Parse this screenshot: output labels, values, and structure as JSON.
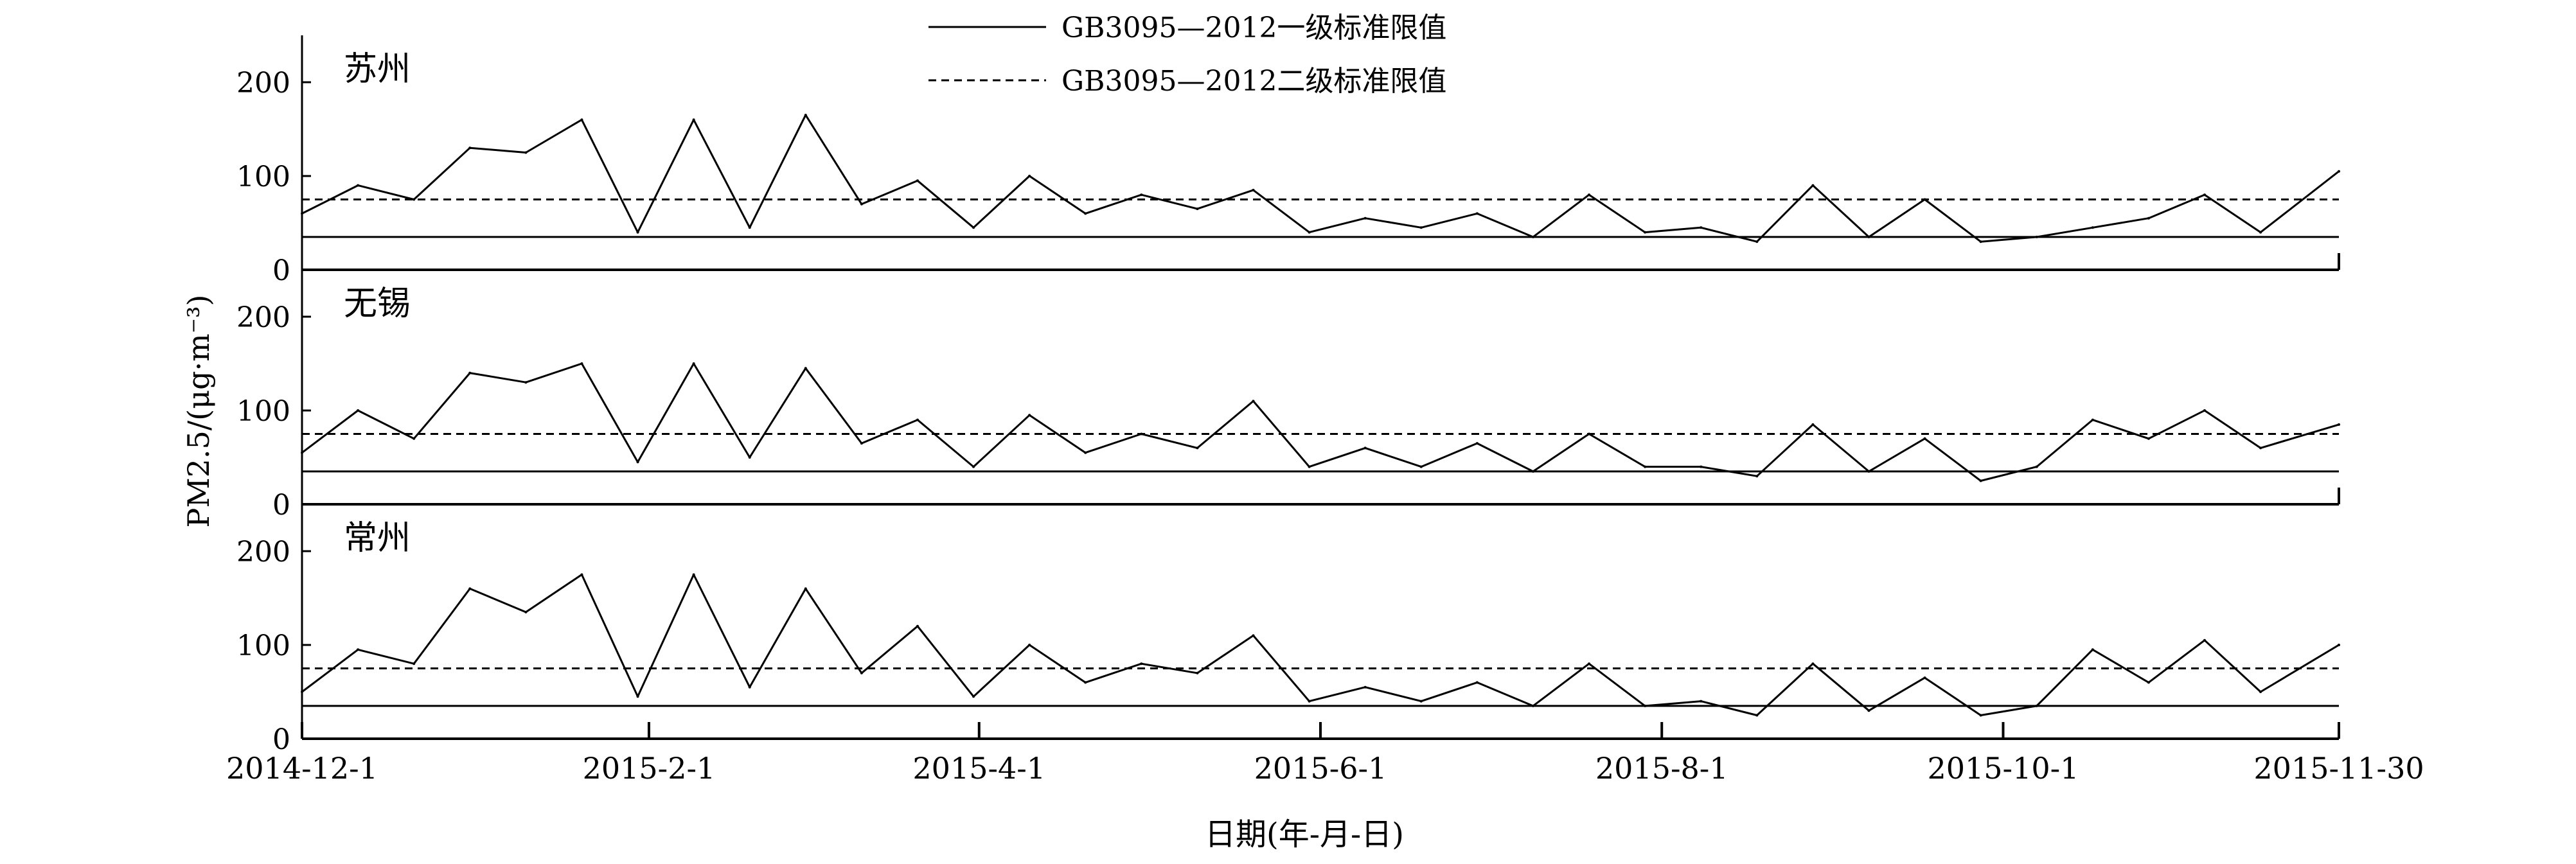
{
  "chart_data": {
    "type": "line",
    "xlabel": "日期(年-月-日)",
    "ylabel": "PM2.5/(μg·m⁻³)",
    "ylim": [
      0,
      250
    ],
    "yticks": [
      0,
      100,
      200
    ],
    "legend": {
      "placement": "top-center",
      "entries": [
        {
          "label": "GB3095—2012一级标准限值",
          "style": "solid",
          "value": 35
        },
        {
          "label": "GB3095—2012二级标准限值",
          "style": "dashed",
          "value": 75
        }
      ]
    },
    "xticks": [
      "2014-12-1",
      "2015-2-1",
      "2015-4-1",
      "2015-6-1",
      "2015-8-1",
      "2015-10-1",
      "2015-11-30"
    ],
    "panels": [
      {
        "name": "苏州",
        "x": [
          "2014-12-1",
          "2014-12-11",
          "2014-12-21",
          "2014-12-31",
          "2015-1-10",
          "2015-1-20",
          "2015-1-30",
          "2015-2-9",
          "2015-2-19",
          "2015-3-1",
          "2015-3-11",
          "2015-3-21",
          "2015-3-31",
          "2015-4-10",
          "2015-4-20",
          "2015-4-30",
          "2015-5-10",
          "2015-5-20",
          "2015-5-30",
          "2015-6-9",
          "2015-6-19",
          "2015-6-29",
          "2015-7-9",
          "2015-7-19",
          "2015-7-29",
          "2015-8-8",
          "2015-8-18",
          "2015-8-28",
          "2015-9-7",
          "2015-9-17",
          "2015-9-27",
          "2015-10-7",
          "2015-10-17",
          "2015-10-27",
          "2015-11-6",
          "2015-11-16",
          "2015-11-30"
        ],
        "values": [
          60,
          90,
          75,
          130,
          125,
          160,
          40,
          160,
          45,
          165,
          70,
          95,
          45,
          100,
          60,
          80,
          65,
          85,
          40,
          55,
          45,
          60,
          35,
          80,
          40,
          45,
          30,
          90,
          35,
          75,
          30,
          35,
          45,
          55,
          80,
          40,
          105
        ]
      },
      {
        "name": "无锡",
        "x": [
          "2014-12-1",
          "2014-12-11",
          "2014-12-21",
          "2014-12-31",
          "2015-1-10",
          "2015-1-20",
          "2015-1-30",
          "2015-2-9",
          "2015-2-19",
          "2015-3-1",
          "2015-3-11",
          "2015-3-21",
          "2015-3-31",
          "2015-4-10",
          "2015-4-20",
          "2015-4-30",
          "2015-5-10",
          "2015-5-20",
          "2015-5-30",
          "2015-6-9",
          "2015-6-19",
          "2015-6-29",
          "2015-7-9",
          "2015-7-19",
          "2015-7-29",
          "2015-8-8",
          "2015-8-18",
          "2015-8-28",
          "2015-9-7",
          "2015-9-17",
          "2015-9-27",
          "2015-10-7",
          "2015-10-17",
          "2015-10-27",
          "2015-11-6",
          "2015-11-16",
          "2015-11-30"
        ],
        "values": [
          55,
          100,
          70,
          140,
          130,
          150,
          45,
          150,
          50,
          145,
          65,
          90,
          40,
          95,
          55,
          75,
          60,
          110,
          40,
          60,
          40,
          65,
          35,
          75,
          40,
          40,
          30,
          85,
          35,
          70,
          25,
          40,
          90,
          70,
          100,
          60,
          85
        ]
      },
      {
        "name": "常州",
        "x": [
          "2014-12-1",
          "2014-12-11",
          "2014-12-21",
          "2014-12-31",
          "2015-1-10",
          "2015-1-20",
          "2015-1-30",
          "2015-2-9",
          "2015-2-19",
          "2015-3-1",
          "2015-3-11",
          "2015-3-21",
          "2015-3-31",
          "2015-4-10",
          "2015-4-20",
          "2015-4-30",
          "2015-5-10",
          "2015-5-20",
          "2015-5-30",
          "2015-6-9",
          "2015-6-19",
          "2015-6-29",
          "2015-7-9",
          "2015-7-19",
          "2015-7-29",
          "2015-8-8",
          "2015-8-18",
          "2015-8-28",
          "2015-9-7",
          "2015-9-17",
          "2015-9-27",
          "2015-10-7",
          "2015-10-17",
          "2015-10-27",
          "2015-11-6",
          "2015-11-16",
          "2015-11-30"
        ],
        "values": [
          50,
          95,
          80,
          160,
          135,
          175,
          45,
          175,
          55,
          160,
          70,
          120,
          45,
          100,
          60,
          80,
          70,
          110,
          40,
          55,
          40,
          60,
          35,
          80,
          35,
          40,
          25,
          80,
          30,
          65,
          25,
          35,
          95,
          60,
          105,
          50,
          100
        ]
      }
    ]
  }
}
